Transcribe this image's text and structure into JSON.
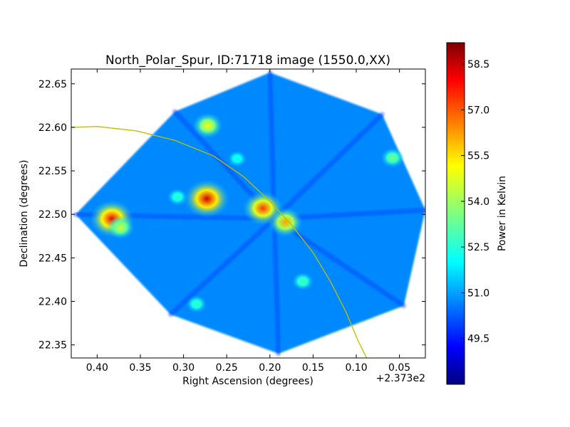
{
  "chart_data": {
    "type": "heatmap",
    "title": "North_Polar_Spur, ID:71718 image (1550.0,XX)",
    "xlabel": "Right Ascension (degrees)",
    "ylabel": "Declination (degrees)",
    "x_offset_label": "+2.373e2",
    "xlim": [
      0.43,
      0.02
    ],
    "ylim": [
      22.335,
      22.667
    ],
    "x_ticks": [
      {
        "value": 0.4,
        "label": "0.40"
      },
      {
        "value": 0.35,
        "label": "0.35"
      },
      {
        "value": 0.3,
        "label": "0.30"
      },
      {
        "value": 0.25,
        "label": "0.25"
      },
      {
        "value": 0.2,
        "label": "0.20"
      },
      {
        "value": 0.15,
        "label": "0.15"
      },
      {
        "value": 0.1,
        "label": "0.10"
      },
      {
        "value": 0.05,
        "label": "0.05"
      }
    ],
    "y_ticks": [
      {
        "value": 22.35,
        "label": "22.35"
      },
      {
        "value": 22.4,
        "label": "22.40"
      },
      {
        "value": 22.45,
        "label": "22.45"
      },
      {
        "value": 22.5,
        "label": "22.50"
      },
      {
        "value": 22.55,
        "label": "22.55"
      },
      {
        "value": 22.6,
        "label": "22.60"
      },
      {
        "value": 22.65,
        "label": "22.65"
      }
    ],
    "colorbar": {
      "label": "Power in Kelvin",
      "range": [
        48.0,
        59.2
      ],
      "colormap": "jet",
      "ticks": [
        {
          "value": 49.5,
          "label": "49.5"
        },
        {
          "value": 51.0,
          "label": "51.0"
        },
        {
          "value": 52.5,
          "label": "52.5"
        },
        {
          "value": 54.0,
          "label": "54.0"
        },
        {
          "value": 55.5,
          "label": "55.5"
        },
        {
          "value": 57.0,
          "label": "57.0"
        },
        {
          "value": 58.5,
          "label": "58.5"
        }
      ]
    },
    "background_level": 50.9,
    "footprint_polygon": [
      [
        0.2,
        22.663
      ],
      [
        0.07,
        22.615
      ],
      [
        0.02,
        22.505
      ],
      [
        0.045,
        22.395
      ],
      [
        0.19,
        22.34
      ],
      [
        0.315,
        22.385
      ],
      [
        0.425,
        22.5
      ],
      [
        0.31,
        22.618
      ]
    ],
    "hotspots": [
      {
        "ra": 0.273,
        "dec": 22.518,
        "peak": 58.3
      },
      {
        "ra": 0.383,
        "dec": 22.495,
        "peak": 58.0
      },
      {
        "ra": 0.272,
        "dec": 22.602,
        "peak": 55.0
      },
      {
        "ra": 0.208,
        "dec": 22.507,
        "peak": 57.2
      },
      {
        "ra": 0.182,
        "dec": 22.491,
        "peak": 56.0
      },
      {
        "ra": 0.373,
        "dec": 22.485,
        "peak": 54.5
      },
      {
        "ra": 0.058,
        "dec": 22.565,
        "peak": 53.5
      },
      {
        "ra": 0.162,
        "dec": 22.423,
        "peak": 53.0
      },
      {
        "ra": 0.285,
        "dec": 22.397,
        "peak": 52.8
      },
      {
        "ra": 0.307,
        "dec": 22.52,
        "peak": 52.7
      },
      {
        "ra": 0.238,
        "dec": 22.564,
        "peak": 52.4
      }
    ],
    "overlay_curve": {
      "color": "#bfbf00",
      "points": [
        [
          0.43,
          22.6
        ],
        [
          0.4,
          22.601
        ],
        [
          0.355,
          22.596
        ],
        [
          0.31,
          22.585
        ],
        [
          0.265,
          22.567
        ],
        [
          0.23,
          22.543
        ],
        [
          0.2,
          22.515
        ],
        [
          0.175,
          22.488
        ],
        [
          0.15,
          22.456
        ],
        [
          0.13,
          22.423
        ],
        [
          0.112,
          22.388
        ],
        [
          0.098,
          22.355
        ],
        [
          0.088,
          22.335
        ]
      ]
    }
  }
}
